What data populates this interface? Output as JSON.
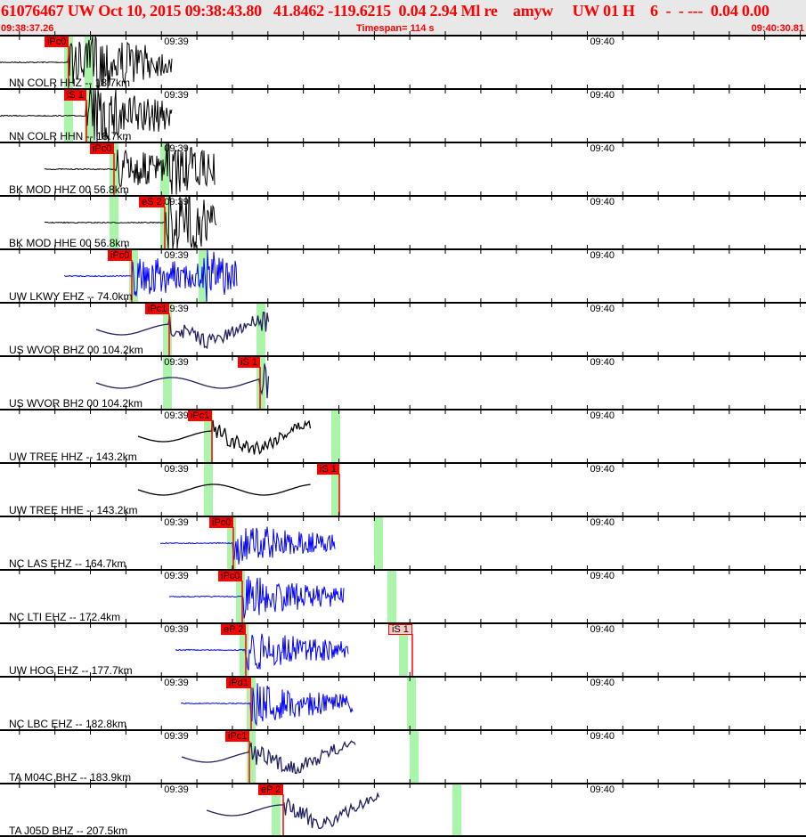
{
  "header": {
    "title": "61076467 UW Oct 10, 2015 09:38:43.80   41.8462 -119.6215  0.04 2.94 Ml re    amyw     UW 01 H    6  -  - ---  0.04 0.00",
    "start_time": "09:38:37.26",
    "timespan": "Timespan= 114 s",
    "end_time": "09:40:30.81"
  },
  "time_ticks": [
    "09:39",
    "09:40"
  ],
  "colors": {
    "pick": "#ff0000",
    "window": "#aaf5aa",
    "black": "#000000",
    "blue": "#0000ff",
    "navy": "#202060",
    "header_bg": "#e8e8e8"
  },
  "channels": [
    {
      "label": "NN COLR HHZ -- 18.7km",
      "color": "black",
      "trace": [
        "09:38:37.26",
        "09:39:01.60"
      ],
      "kind": "short",
      "pick": {
        "label": "iPc0",
        "time": "09:38:46.92"
      },
      "windows": [
        "09:38:46.92",
        "09:38:49.80"
      ]
    },
    {
      "label": "NN COLR HHN -- 18.7km",
      "color": "black",
      "trace": [
        "09:38:37.26",
        "09:39:01.60"
      ],
      "kind": "short",
      "pick": {
        "label": "iS 1",
        "time": "09:38:49.43"
      },
      "windows": [
        "09:38:46.92",
        "09:38:49.80"
      ]
    },
    {
      "label": "BK MOD HHZ 00 56.8km",
      "color": "black",
      "trace": [
        "09:38:43.53",
        "09:39:07.60"
      ],
      "kind": "short",
      "pick": {
        "label": "iPc0",
        "time": "09:38:53.32"
      },
      "windows": [
        "09:38:53.32",
        "09:39:00.47"
      ]
    },
    {
      "label": "BK MOD HHE 00 56.8km",
      "color": "black",
      "trace": [
        "09:38:43.53",
        "09:39:07.85"
      ],
      "kind": "short",
      "pick": {
        "label": "eS 2",
        "time": "09:39:00.47"
      },
      "windows": [
        "09:38:53.32",
        "09:39:00.47"
      ]
    },
    {
      "label": "UW LKWY EHZ -- 74.0km",
      "color": "blue",
      "trace": [
        "09:38:46.29",
        "09:39:10.73"
      ],
      "kind": "short",
      "pick": {
        "label": "iPc0",
        "time": "09:38:55.83"
      },
      "windows": [
        "09:38:56.08",
        "09:39:05.87"
      ]
    },
    {
      "label": "US WVOR BHZ 00 104.2km",
      "color": "navy",
      "trace": [
        "09:38:50.81",
        "09:39:15.13"
      ],
      "kind": "long",
      "pick": {
        "label": "iPc1",
        "time": "09:39:01.10"
      },
      "windows": [
        "09:39:00.85",
        "09:39:14.02"
      ]
    },
    {
      "label": "US WVOR BH2 00 104.2km",
      "color": "navy",
      "trace": [
        "09:38:50.81",
        "09:39:15.13"
      ],
      "kind": "long",
      "pick": {
        "label": "iS 1",
        "time": "09:39:13.90"
      },
      "windows": [
        "09:39:00.85",
        "09:39:14.02"
      ]
    },
    {
      "label": "UW TREE HHZ -- 143.2km",
      "color": "black",
      "trace": [
        "09:38:56.71",
        "09:39:21.15"
      ],
      "kind": "long",
      "pick": {
        "label": "iPc1",
        "time": "09:39:07.12"
      },
      "windows": [
        "09:39:06.62",
        "09:39:24.56"
      ]
    },
    {
      "label": "UW TREE HHE -- 143.2km",
      "color": "black",
      "trace": [
        "09:38:56.71",
        "09:39:21.15"
      ],
      "kind": "long",
      "pick": {
        "label": "iS 1",
        "time": "09:39:25.06"
      },
      "windows": [
        "09:39:06.62",
        "09:39:24.56"
      ]
    },
    {
      "label": "NC LAS EHZ -- 164.7km",
      "color": "blue",
      "trace": [
        "09:38:59.85",
        "09:39:24.54"
      ],
      "kind": "short",
      "pick": {
        "label": "iPc0",
        "time": "09:39:10.13"
      },
      "windows": [
        "09:39:09.88",
        "09:39:30.58"
      ]
    },
    {
      "label": "NC LTI EHZ -- 172.4km",
      "color": "blue",
      "trace": [
        "09:39:01.10",
        "09:39:25.79"
      ],
      "kind": "short",
      "pick": {
        "label": "iPc0",
        "time": "09:39:11.39"
      },
      "windows": [
        "09:39:11.14",
        "09:39:32.47"
      ]
    },
    {
      "label": "UW HOG EHZ -- 177.7km",
      "color": "blue",
      "trace": [
        "09:39:01.98",
        "09:39:26.42"
      ],
      "kind": "short",
      "pick": {
        "label": "eP 2",
        "time": "09:39:11.89"
      },
      "pick2": {
        "label": "iS 1",
        "time": "09:39:35.35"
      },
      "windows": [
        "09:39:11.64",
        "09:39:34.10"
      ]
    },
    {
      "label": "NC LBC EHZ -- 182.8km",
      "color": "blue",
      "trace": [
        "09:39:02.73",
        "09:39:27.05"
      ],
      "kind": "short",
      "pick": {
        "label": "iPd1",
        "time": "09:39:12.64"
      },
      "windows": [
        "09:39:12.64",
        "09:39:35.23"
      ]
    },
    {
      "label": "TA M04C BHZ -- 183.9km",
      "color": "navy",
      "trace": [
        "09:39:02.86",
        "09:39:27.43"
      ],
      "kind": "long",
      "pick": {
        "label": "iPc1",
        "time": "09:39:12.39"
      },
      "windows": [
        "09:39:12.64",
        "09:39:35.60"
      ]
    },
    {
      "label": "TA J05D BHZ -- 207.5km",
      "color": "navy",
      "trace": [
        "09:39:06.37",
        "09:39:30.81"
      ],
      "kind": "long",
      "pick": {
        "label": "eP 2",
        "time": "09:39:17.16"
      },
      "windows": [
        "09:39:16.16",
        "09:39:41.63"
      ]
    }
  ]
}
